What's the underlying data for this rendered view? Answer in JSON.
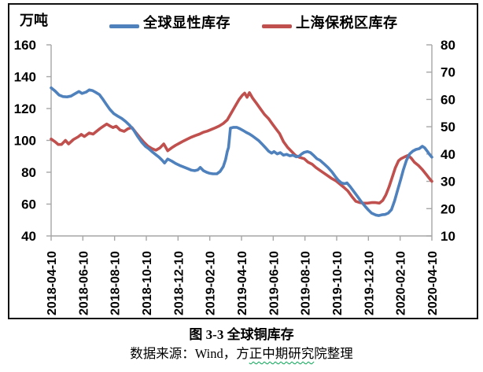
{
  "figure": {
    "unit_label": "万吨",
    "caption_title": "图 3-3  全球铜库存",
    "source_prefix": "数据来源：Wind，方",
    "source_underlined": "正中期研究",
    "source_suffix": "院整理"
  },
  "chart_data": {
    "type": "line",
    "title": "图 3-3 全球铜库存",
    "source": "数据来源：Wind，方正中期研究院整理",
    "legend_position": "top",
    "grid": false,
    "x_axis": {
      "tick_labels": [
        "2018-04-10",
        "2018-06-10",
        "2018-08-10",
        "2018-10-10",
        "2018-12-10",
        "2019-02-10",
        "2019-04-10",
        "2019-06-10",
        "2019-08-10",
        "2019-10-10",
        "2019-12-10",
        "2020-02-10",
        "2020-04-10"
      ],
      "range_months": [
        0,
        24
      ]
    },
    "left_y_axis": {
      "label": "万吨",
      "min": 40,
      "max": 160,
      "step": 20,
      "ticks": [
        160,
        140,
        120,
        100,
        80,
        60,
        40
      ]
    },
    "right_y_axis": {
      "min": 10,
      "max": 80,
      "step": 10,
      "ticks": [
        80,
        70,
        60,
        50,
        40,
        30,
        20,
        10
      ]
    },
    "series": [
      {
        "name": "全球显性库存",
        "axis": "left",
        "color": "#4F81BD",
        "points": [
          [
            0,
            133
          ],
          [
            0.25,
            131
          ],
          [
            0.5,
            128.5
          ],
          [
            0.75,
            127.5
          ],
          [
            1,
            127.3
          ],
          [
            1.25,
            127.8
          ],
          [
            1.5,
            129.3
          ],
          [
            1.75,
            130.7
          ],
          [
            1.95,
            129.5
          ],
          [
            2.2,
            130.3
          ],
          [
            2.4,
            131.7
          ],
          [
            2.6,
            131.3
          ],
          [
            2.8,
            130.2
          ],
          [
            3.05,
            128.7
          ],
          [
            3.25,
            126
          ],
          [
            3.45,
            123
          ],
          [
            3.7,
            119.5
          ],
          [
            3.95,
            116.8
          ],
          [
            4.2,
            115.2
          ],
          [
            4.45,
            113.8
          ],
          [
            4.7,
            111.8
          ],
          [
            4.95,
            109.5
          ],
          [
            5.2,
            106.5
          ],
          [
            5.45,
            102.5
          ],
          [
            5.7,
            99
          ],
          [
            5.95,
            96.2
          ],
          [
            6.15,
            94.8
          ],
          [
            6.35,
            93
          ],
          [
            6.6,
            91
          ],
          [
            6.8,
            89.5
          ],
          [
            7,
            87.5
          ],
          [
            7.15,
            85.8
          ],
          [
            7.35,
            88.3
          ],
          [
            7.6,
            87
          ],
          [
            7.85,
            85.5
          ],
          [
            8.1,
            84.3
          ],
          [
            8.35,
            83.3
          ],
          [
            8.6,
            82.3
          ],
          [
            8.85,
            81.3
          ],
          [
            9.05,
            81
          ],
          [
            9.25,
            81.5
          ],
          [
            9.4,
            83
          ],
          [
            9.6,
            81
          ],
          [
            9.8,
            80
          ],
          [
            10,
            79.3
          ],
          [
            10.2,
            79
          ],
          [
            10.45,
            79
          ],
          [
            10.65,
            80.5
          ],
          [
            10.85,
            83.5
          ],
          [
            11,
            88
          ],
          [
            11.1,
            93
          ],
          [
            11.18,
            95.5
          ],
          [
            11.3,
            107.7
          ],
          [
            11.5,
            108.2
          ],
          [
            11.7,
            108.2
          ],
          [
            11.9,
            107.3
          ],
          [
            12.1,
            106.2
          ],
          [
            12.3,
            105
          ],
          [
            12.5,
            104
          ],
          [
            12.7,
            102.7
          ],
          [
            12.9,
            101.2
          ],
          [
            13.1,
            99.7
          ],
          [
            13.3,
            97.7
          ],
          [
            13.5,
            95.5
          ],
          [
            13.7,
            93.3
          ],
          [
            13.9,
            92
          ],
          [
            14.05,
            93
          ],
          [
            14.25,
            91.5
          ],
          [
            14.45,
            92.3
          ],
          [
            14.65,
            90.7
          ],
          [
            14.85,
            91.2
          ],
          [
            15.05,
            90.3
          ],
          [
            15.25,
            90.7
          ],
          [
            15.45,
            89.7
          ],
          [
            15.65,
            90.2
          ],
          [
            15.8,
            91.5
          ],
          [
            15.95,
            92.5
          ],
          [
            16.15,
            93
          ],
          [
            16.35,
            92.3
          ],
          [
            16.55,
            90.5
          ],
          [
            16.75,
            88.5
          ],
          [
            16.95,
            87.5
          ],
          [
            17.2,
            85.3
          ],
          [
            17.45,
            83
          ],
          [
            17.7,
            80.3
          ],
          [
            17.9,
            77.5
          ],
          [
            18.1,
            75
          ],
          [
            18.3,
            73.3
          ],
          [
            18.5,
            72.8
          ],
          [
            18.65,
            73.3
          ],
          [
            18.85,
            71
          ],
          [
            19.05,
            68.3
          ],
          [
            19.3,
            65
          ],
          [
            19.55,
            61.5
          ],
          [
            19.8,
            58.5
          ],
          [
            20,
            56.3
          ],
          [
            20.2,
            54.3
          ],
          [
            20.45,
            53.2
          ],
          [
            20.65,
            52.8
          ],
          [
            20.85,
            53.3
          ],
          [
            21.05,
            53.5
          ],
          [
            21.25,
            54.3
          ],
          [
            21.45,
            56.5
          ],
          [
            21.65,
            62
          ],
          [
            21.85,
            69
          ],
          [
            22.05,
            76
          ],
          [
            22.2,
            81.5
          ],
          [
            22.4,
            87.5
          ],
          [
            22.6,
            91.5
          ],
          [
            22.8,
            93.3
          ],
          [
            23,
            94.3
          ],
          [
            23.2,
            94.8
          ],
          [
            23.4,
            96.3
          ],
          [
            23.55,
            95.3
          ],
          [
            23.7,
            93.3
          ],
          [
            23.85,
            91.2
          ],
          [
            24,
            89.5
          ]
        ]
      },
      {
        "name": "上海保税区库存",
        "axis": "right",
        "color": "#C0504D",
        "points": [
          [
            0,
            45.5
          ],
          [
            0.25,
            44.5
          ],
          [
            0.45,
            43.5
          ],
          [
            0.65,
            43.5
          ],
          [
            0.9,
            45
          ],
          [
            1.1,
            43.7
          ],
          [
            1.4,
            45.3
          ],
          [
            1.7,
            46.3
          ],
          [
            1.9,
            47.2
          ],
          [
            2.1,
            46.4
          ],
          [
            2.4,
            47.7
          ],
          [
            2.65,
            47.3
          ],
          [
            2.9,
            48.5
          ],
          [
            3.1,
            49.4
          ],
          [
            3.3,
            50.2
          ],
          [
            3.5,
            51
          ],
          [
            3.7,
            50.3
          ],
          [
            3.9,
            49.7
          ],
          [
            4.1,
            50.2
          ],
          [
            4.35,
            48.8
          ],
          [
            4.6,
            48.3
          ],
          [
            4.85,
            49.3
          ],
          [
            5.1,
            49.7
          ],
          [
            5.35,
            47.8
          ],
          [
            5.6,
            46
          ],
          [
            5.85,
            44.3
          ],
          [
            6.1,
            42.9
          ],
          [
            6.35,
            42
          ],
          [
            6.6,
            41.4
          ],
          [
            6.85,
            42.2
          ],
          [
            7.1,
            43.7
          ],
          [
            7.35,
            41.2
          ],
          [
            7.6,
            42.3
          ],
          [
            7.85,
            43.2
          ],
          [
            8.1,
            44
          ],
          [
            8.35,
            44.8
          ],
          [
            8.6,
            45.5
          ],
          [
            8.85,
            46.2
          ],
          [
            9.1,
            46.8
          ],
          [
            9.35,
            47.3
          ],
          [
            9.6,
            48
          ],
          [
            9.85,
            48.4
          ],
          [
            10.1,
            49
          ],
          [
            10.35,
            49.6
          ],
          [
            10.6,
            50.3
          ],
          [
            10.85,
            51.2
          ],
          [
            11.1,
            52.5
          ],
          [
            11.35,
            55
          ],
          [
            11.6,
            57.5
          ],
          [
            11.85,
            60
          ],
          [
            12.05,
            61.5
          ],
          [
            12.2,
            62.3
          ],
          [
            12.35,
            60.8
          ],
          [
            12.5,
            62.5
          ],
          [
            12.7,
            60.5
          ],
          [
            12.95,
            58.5
          ],
          [
            13.2,
            56.5
          ],
          [
            13.45,
            54.5
          ],
          [
            13.7,
            53
          ],
          [
            13.95,
            51
          ],
          [
            14.2,
            49
          ],
          [
            14.4,
            47.5
          ],
          [
            14.65,
            44.5
          ],
          [
            14.9,
            42.5
          ],
          [
            15.15,
            41
          ],
          [
            15.4,
            39.5
          ],
          [
            15.65,
            38.8
          ],
          [
            15.95,
            38.3
          ],
          [
            16.2,
            37
          ],
          [
            16.45,
            36.3
          ],
          [
            16.7,
            35
          ],
          [
            16.95,
            34
          ],
          [
            17.2,
            33
          ],
          [
            17.45,
            32
          ],
          [
            17.7,
            31
          ],
          [
            17.95,
            30.2
          ],
          [
            18.2,
            29
          ],
          [
            18.45,
            27.8
          ],
          [
            18.7,
            26.5
          ],
          [
            18.95,
            24.5
          ],
          [
            19.2,
            22.7
          ],
          [
            19.45,
            22.2
          ],
          [
            19.7,
            22
          ],
          [
            19.95,
            22
          ],
          [
            20.2,
            22.2
          ],
          [
            20.45,
            22.2
          ],
          [
            20.7,
            22
          ],
          [
            20.9,
            23
          ],
          [
            21.1,
            25
          ],
          [
            21.3,
            28
          ],
          [
            21.5,
            31.5
          ],
          [
            21.7,
            35
          ],
          [
            21.9,
            37.5
          ],
          [
            22.05,
            38.3
          ],
          [
            22.3,
            39
          ],
          [
            22.5,
            39.5
          ],
          [
            22.7,
            38.5
          ],
          [
            22.9,
            37
          ],
          [
            23.15,
            35.8
          ],
          [
            23.4,
            34.3
          ],
          [
            23.65,
            32.5
          ],
          [
            23.85,
            31
          ],
          [
            24,
            30
          ]
        ]
      }
    ]
  }
}
